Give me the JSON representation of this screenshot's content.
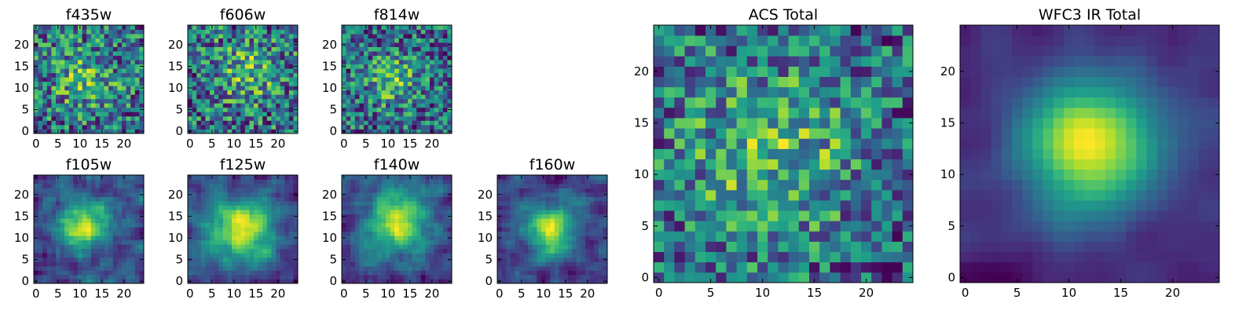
{
  "chart_data": [
    {
      "type": "heatmap",
      "title": "f435w",
      "colormap": "viridis",
      "grid_size": 25,
      "xlim": [
        -0.5,
        24.5
      ],
      "ylim": [
        -0.5,
        24.5
      ],
      "xticks": [
        0,
        5,
        10,
        15,
        20
      ],
      "yticks": [
        0,
        5,
        10,
        15,
        20
      ],
      "xlabel": "",
      "ylabel": "",
      "seed": 11,
      "noise": 0.55,
      "blob": {
        "x": 11,
        "y": 12,
        "amp": 0.2,
        "sigma": 5
      },
      "smooth": 0
    },
    {
      "type": "heatmap",
      "title": "f606w",
      "colormap": "viridis",
      "grid_size": 25,
      "xlim": [
        -0.5,
        24.5
      ],
      "ylim": [
        -0.5,
        24.5
      ],
      "xticks": [
        0,
        5,
        10,
        15,
        20
      ],
      "yticks": [
        0,
        5,
        10,
        15,
        20
      ],
      "xlabel": "",
      "ylabel": "",
      "seed": 23,
      "noise": 0.55,
      "blob": {
        "x": 13,
        "y": 14,
        "amp": 0.2,
        "sigma": 5
      },
      "smooth": 0
    },
    {
      "type": "heatmap",
      "title": "f814w",
      "colormap": "viridis",
      "grid_size": 25,
      "xlim": [
        -0.5,
        24.5
      ],
      "ylim": [
        -0.5,
        24.5
      ],
      "xticks": [
        0,
        5,
        10,
        15,
        20
      ],
      "yticks": [
        0,
        5,
        10,
        15,
        20
      ],
      "xlabel": "",
      "ylabel": "",
      "seed": 37,
      "noise": 0.55,
      "blob": {
        "x": 11,
        "y": 12,
        "amp": 0.25,
        "sigma": 4
      },
      "smooth": 0
    },
    {
      "type": "heatmap",
      "title": "f105w",
      "colormap": "viridis",
      "grid_size": 25,
      "xlim": [
        -0.5,
        24.5
      ],
      "ylim": [
        -0.5,
        24.5
      ],
      "xticks": [
        0,
        5,
        10,
        15,
        20
      ],
      "yticks": [
        0,
        5,
        10,
        15,
        20
      ],
      "xlabel": "",
      "ylabel": "",
      "seed": 41,
      "noise": 0.45,
      "blob": {
        "x": 11,
        "y": 13,
        "amp": 0.35,
        "sigma": 4
      },
      "smooth": 1
    },
    {
      "type": "heatmap",
      "title": "f125w",
      "colormap": "viridis",
      "grid_size": 25,
      "xlim": [
        -0.5,
        24.5
      ],
      "ylim": [
        -0.5,
        24.5
      ],
      "xticks": [
        0,
        5,
        10,
        15,
        20
      ],
      "yticks": [
        0,
        5,
        10,
        15,
        20
      ],
      "xlabel": "",
      "ylabel": "",
      "seed": 53,
      "noise": 0.45,
      "blob": {
        "x": 12,
        "y": 12,
        "amp": 0.45,
        "sigma": 5
      },
      "smooth": 1
    },
    {
      "type": "heatmap",
      "title": "f140w",
      "colormap": "viridis",
      "grid_size": 25,
      "xlim": [
        -0.5,
        24.5
      ],
      "ylim": [
        -0.5,
        24.5
      ],
      "xticks": [
        0,
        5,
        10,
        15,
        20
      ],
      "yticks": [
        0,
        5,
        10,
        15,
        20
      ],
      "xlabel": "",
      "ylabel": "",
      "seed": 67,
      "noise": 0.45,
      "blob": {
        "x": 12,
        "y": 14,
        "amp": 0.4,
        "sigma": 5
      },
      "smooth": 1
    },
    {
      "type": "heatmap",
      "title": "f160w",
      "colormap": "viridis",
      "grid_size": 25,
      "xlim": [
        -0.5,
        24.5
      ],
      "ylim": [
        -0.5,
        24.5
      ],
      "xticks": [
        0,
        5,
        10,
        15,
        20
      ],
      "yticks": [
        0,
        5,
        10,
        15,
        20
      ],
      "xlabel": "",
      "ylabel": "",
      "seed": 71,
      "noise": 0.45,
      "blob": {
        "x": 12,
        "y": 12,
        "amp": 0.4,
        "sigma": 4
      },
      "smooth": 1
    },
    {
      "type": "heatmap",
      "title": "ACS Total",
      "colormap": "viridis",
      "grid_size": 25,
      "xlim": [
        -0.5,
        24.5
      ],
      "ylim": [
        -0.5,
        24.5
      ],
      "xticks": [
        0,
        5,
        10,
        15,
        20
      ],
      "yticks": [
        0,
        5,
        10,
        15,
        20
      ],
      "xlabel": "",
      "ylabel": "",
      "seed": 83,
      "noise": 0.5,
      "blob": {
        "x": 11,
        "y": 12,
        "amp": 0.25,
        "sigma": 6
      },
      "smooth": 0
    },
    {
      "type": "heatmap",
      "title": "WFC3 IR Total",
      "colormap": "viridis",
      "grid_size": 25,
      "xlim": [
        -0.5,
        24.5
      ],
      "ylim": [
        -0.5,
        24.5
      ],
      "xticks": [
        0,
        5,
        10,
        15,
        20
      ],
      "yticks": [
        0,
        5,
        10,
        15,
        20
      ],
      "xlabel": "",
      "ylabel": "",
      "seed": 97,
      "noise": 0.3,
      "blob": {
        "x": 12,
        "y": 13,
        "amp": 0.6,
        "sigma": 4.5
      },
      "smooth": 2
    }
  ]
}
